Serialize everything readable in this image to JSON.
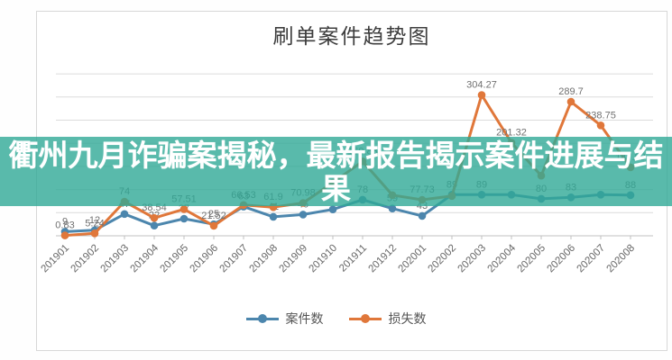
{
  "overlay": {
    "headline": "衢州九月诈骗案揭秘，最新报告揭示案件进展与结果",
    "background_color": "#2fa996"
  },
  "chart_data": {
    "type": "line",
    "title": "刷单案件趋势图",
    "xlabel": "",
    "ylabel": "",
    "ylim": [
      0,
      350
    ],
    "grid_step": 50,
    "grid": "horizontal",
    "legend_position": "bottom",
    "categories": [
      "201901",
      "201902",
      "201903",
      "201904",
      "201905",
      "201906",
      "201907",
      "201908",
      "201909",
      "201910",
      "201911",
      "201912",
      "202001",
      "202002",
      "202003",
      "202004",
      "202005",
      "202006",
      "202007",
      "202008"
    ],
    "series": [
      {
        "name": "案件数",
        "color": "#4c86ad",
        "values": [
          9,
          12,
          47,
          22,
          37,
          25,
          63,
          41,
          46,
          57,
          78,
          59,
          43,
          89,
          89,
          89,
          80,
          83,
          89,
          88
        ],
        "labels": [
          "9",
          "12",
          "47",
          "22",
          "37",
          "25",
          "63",
          "41",
          "46",
          null,
          "78",
          "59",
          "43",
          "89",
          "89",
          null,
          "80",
          "83",
          null,
          "88"
        ]
      },
      {
        "name": "损失数",
        "color": "#e0773a",
        "values": [
          0.83,
          5.24,
          74,
          38.54,
          57.51,
          21.52,
          66.53,
          61.9,
          70.98,
          115,
          160.83,
          88,
          77.73,
          86,
          304.27,
          201.32,
          130,
          289.7,
          238.75,
          147.99
        ],
        "labels": [
          "0.83",
          "5.24",
          "74",
          "38.54",
          "57.51",
          "21.52",
          "66.53",
          "61.9",
          "70.98",
          null,
          "160.83",
          null,
          "77.73",
          null,
          "304.27",
          "201.32",
          null,
          "289.7",
          "238.75",
          "147.99"
        ]
      }
    ],
    "colors": {
      "gridline": "#dcdcdc",
      "axis": "#c0c0c0",
      "data_label": "#707070",
      "tick_label": "#666666",
      "title": "#3d3d3d"
    }
  }
}
